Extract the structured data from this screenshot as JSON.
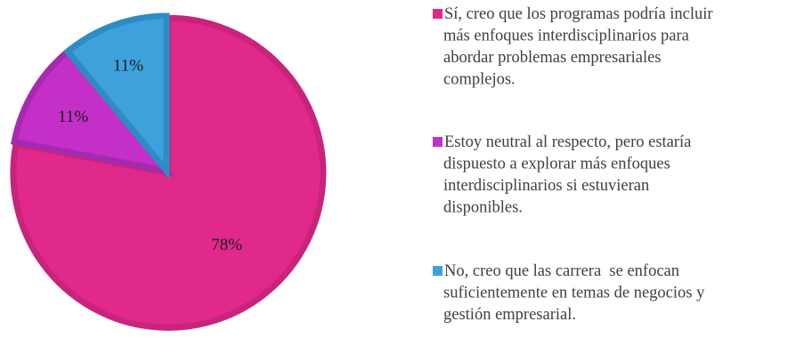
{
  "chart_data": {
    "type": "pie",
    "title": "",
    "start_angle_deg": 0,
    "direction": "clockwise",
    "legend_position": "right",
    "slices": [
      {
        "label_lines": [
          "Sí, creo que los programas podría incluir",
          "más enfoques interdisciplinarios para",
          "abordar problemas empresariales",
          "complejos."
        ],
        "value": 78,
        "display": "78%",
        "color": "#E0298A",
        "edge": "#C8247B"
      },
      {
        "label_lines": [
          "Estoy neutral al respecto, pero estaría",
          "dispuesto a explorar más enfoques",
          "interdisciplinarios si estuvieran",
          "disponibles."
        ],
        "value": 11,
        "display": "11%",
        "color": "#C42FC8",
        "edge": "#A62AAE"
      },
      {
        "label_lines": [
          "No, creo que las carrera  se enfocan",
          "suficientemente en temas de negocios y",
          "gestión empresarial."
        ],
        "value": 11,
        "display": "11%",
        "color": "#3FA1DC",
        "edge": "#2E8CC4"
      }
    ]
  }
}
